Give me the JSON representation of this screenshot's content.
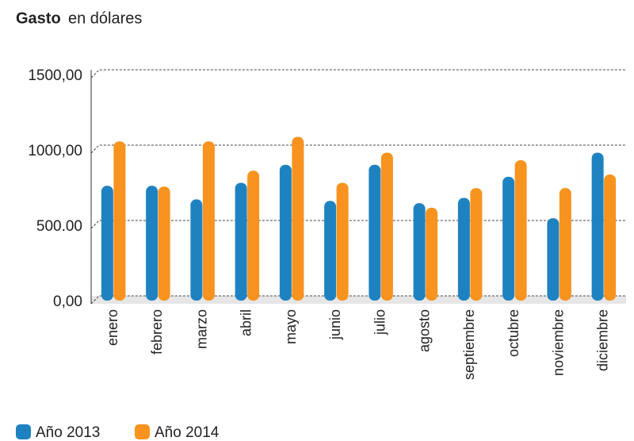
{
  "chart_data": {
    "type": "bar",
    "title": "Gasto",
    "subtitle": "en dólares",
    "categories": [
      "enero",
      "febrero",
      "marzo",
      "abril",
      "mayo",
      "junio",
      "julio",
      "agosto",
      "septiembre",
      "octubre",
      "noviembre",
      "diciembre"
    ],
    "series": [
      {
        "name": "Año 2013",
        "color": "#1f82c0",
        "values": [
          730,
          730,
          640,
          750,
          870,
          630,
          870,
          615,
          650,
          790,
          515,
          950
        ]
      },
      {
        "name": "Año 2014",
        "color": "#f7931e",
        "values": [
          1025,
          725,
          1025,
          830,
          1055,
          750,
          950,
          585,
          715,
          900,
          715,
          805
        ]
      }
    ],
    "ylim": [
      0,
      1500
    ],
    "yticks": [
      {
        "value": 0,
        "label": "0,00"
      },
      {
        "value": 500,
        "label": "500.00"
      },
      {
        "value": 1000,
        "label": "1000,00"
      },
      {
        "value": 1500,
        "label": "1500,00"
      }
    ],
    "grid": true,
    "legend": "bottom"
  }
}
